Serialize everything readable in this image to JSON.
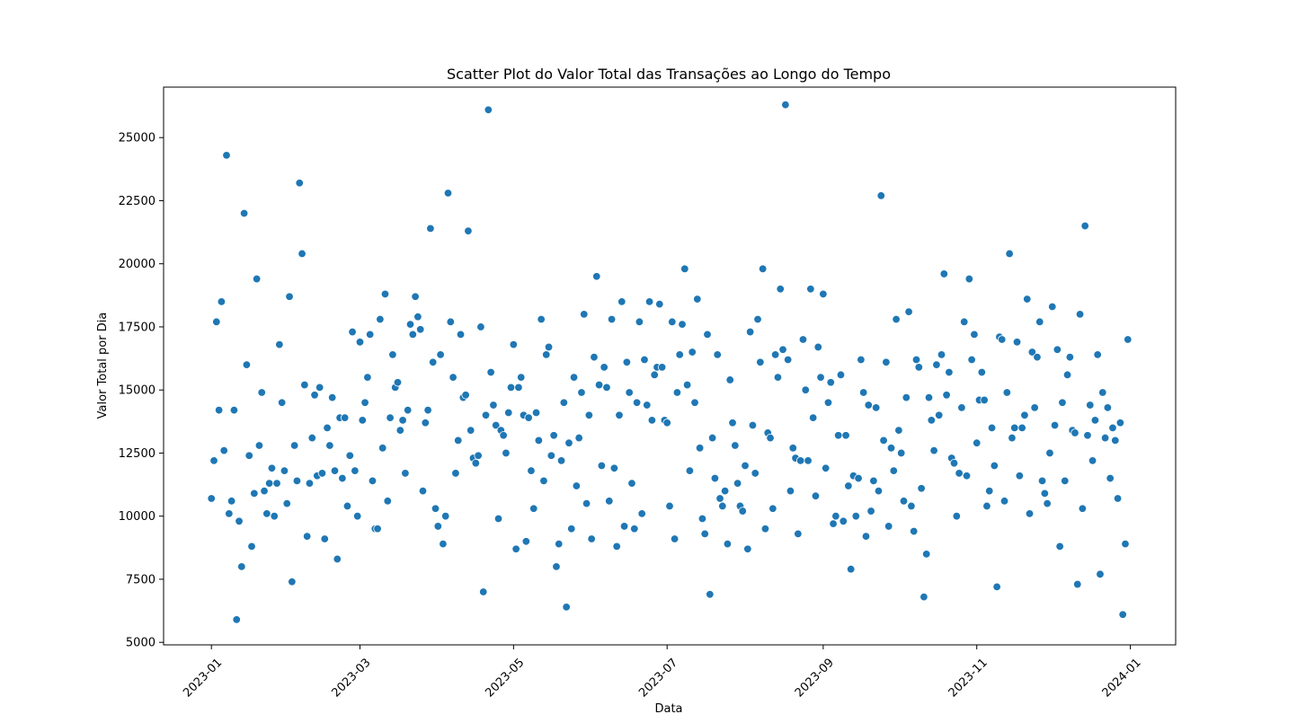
{
  "chart_data": {
    "type": "scatter",
    "title": "Scatter Plot do Valor Total das Transações ao Longo do Tempo",
    "xlabel": "Data",
    "ylabel": "Valor Total por Dia",
    "xlim": [
      "2022-12-13",
      "2024-01-19"
    ],
    "ylim": [
      4900,
      27000
    ],
    "x_ticks": [
      "2023-01",
      "2023-03",
      "2023-05",
      "2023-07",
      "2023-09",
      "2023-11",
      "2024-01"
    ],
    "y_ticks": [
      5000,
      7500,
      10000,
      12500,
      15000,
      17500,
      20000,
      22500,
      25000
    ],
    "grid": false,
    "legend": "none",
    "colors": {
      "point": "#1f77b4",
      "point_edge": "#ffffff",
      "frame": "#000000",
      "text": "#000000"
    },
    "start_date": "2023-01-01",
    "values": [
      10700,
      12200,
      17700,
      14200,
      18500,
      12600,
      24300,
      10100,
      10600,
      14200,
      5900,
      9800,
      8000,
      22000,
      16000,
      12400,
      8800,
      10900,
      19400,
      12800,
      14900,
      11000,
      10100,
      11300,
      11900,
      10000,
      11300,
      16800,
      14500,
      11800,
      10500,
      18700,
      7400,
      12800,
      11400,
      23200,
      20400,
      15200,
      9200,
      11300,
      13100,
      14800,
      11600,
      15100,
      11700,
      9100,
      13500,
      12800,
      14700,
      11800,
      8300,
      13900,
      11500,
      13900,
      10400,
      12400,
      17300,
      11800,
      10000,
      16900,
      13800,
      14500,
      15500,
      17200,
      11400,
      9500,
      9500,
      17800,
      12700,
      18800,
      10600,
      13900,
      16400,
      15100,
      15300,
      13400,
      13800,
      11700,
      14200,
      17600,
      17200,
      18700,
      17900,
      17400,
      11000,
      13700,
      14200,
      21400,
      16100,
      10300,
      9600,
      16400,
      8900,
      10000,
      22800,
      17700,
      15500,
      11700,
      13000,
      17200,
      14700,
      14800,
      21300,
      13400,
      12300,
      12100,
      12400,
      17500,
      7000,
      14000,
      26100,
      15700,
      14400,
      13600,
      9900,
      13400,
      13200,
      12500,
      14100,
      15100,
      16800,
      8700,
      15100,
      15500,
      14000,
      9000,
      13900,
      11800,
      10300,
      14100,
      13000,
      17800,
      11400,
      16400,
      16700,
      12400,
      13200,
      8000,
      8900,
      12200,
      14500,
      6400,
      12900,
      9500,
      15500,
      11200,
      13100,
      14900,
      18000,
      10500,
      14000,
      9100,
      16300,
      19500,
      15200,
      12000,
      15900,
      15100,
      10600,
      17800,
      11900,
      8800,
      14000,
      18500,
      9600,
      16100,
      14900,
      11300,
      9500,
      14500,
      17700,
      10100,
      16200,
      14400,
      18500,
      13800,
      15600,
      15900,
      18400,
      15900,
      13800,
      13700,
      10400,
      17700,
      9100,
      14900,
      16400,
      17600,
      19800,
      15200,
      11800,
      16500,
      14500,
      18600,
      12700,
      9900,
      9300,
      17200,
      6900,
      13100,
      11500,
      16400,
      10700,
      10400,
      11000,
      8900,
      15400,
      13700,
      12800,
      11300,
      10400,
      10200,
      12000,
      8700,
      17300,
      13600,
      11700,
      17800,
      16100,
      19800,
      9500,
      13300,
      13100,
      10300,
      16400,
      15500,
      19000,
      16600,
      26300,
      16200,
      11000,
      12700,
      12300,
      9300,
      12200,
      17000,
      15000,
      12200,
      19000,
      13900,
      10800,
      16700,
      15500,
      18800,
      11900,
      14500,
      15300,
      9700,
      10000,
      13200,
      15600,
      9800,
      13200,
      11200,
      7900,
      11600,
      10000,
      11500,
      16200,
      14900,
      9200,
      14400,
      10200,
      11400,
      14300,
      11000,
      22700,
      13000,
      16100,
      9600,
      12700,
      11800,
      17800,
      13400,
      12500,
      10600,
      14700,
      18100,
      10400,
      9400,
      16200,
      15900,
      11100,
      6800,
      8500,
      14700,
      13800,
      12600,
      16000,
      14000,
      16400,
      19600,
      14800,
      15700,
      12300,
      12100,
      10000,
      11700,
      14300,
      17700,
      11600,
      19400,
      16200,
      17200,
      12900,
      14600,
      15700,
      14600,
      10400,
      11000,
      13500,
      12000,
      7200,
      17100,
      17000,
      10600,
      14900,
      20400,
      13100,
      13500,
      16900,
      11600,
      13500,
      14000,
      18600,
      10100,
      16500,
      14300,
      16300,
      17700,
      11400,
      10900,
      10500,
      12500,
      18300,
      13600,
      16600,
      8800,
      14500,
      11400,
      15600,
      16300,
      13400,
      13300,
      7300,
      18000,
      10300,
      21500,
      13200,
      14400,
      12200,
      13800,
      16400,
      7700,
      14900,
      13100,
      14300,
      11500,
      13500,
      13000,
      10700,
      13700,
      6100,
      8900,
      17000
    ]
  }
}
